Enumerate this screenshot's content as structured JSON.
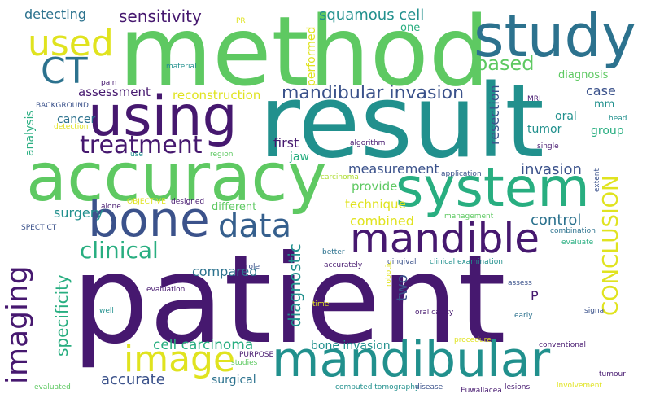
{
  "palette": {
    "dark_purple": "#46186f",
    "indigo": "#3b528b",
    "slate_blue": "#355f8d",
    "blue_teal": "#2c728e",
    "teal": "#21908d",
    "sea_green": "#28ae80",
    "green": "#5ec962",
    "lime": "#addc30",
    "yellow": "#e0e31f"
  },
  "words": [
    {
      "text": "patient",
      "color": "dark_purple"
    },
    {
      "text": "method",
      "color": "green"
    },
    {
      "text": "result",
      "color": "teal"
    },
    {
      "text": "accuracy",
      "color": "green"
    },
    {
      "text": "study",
      "color": "blue_teal"
    },
    {
      "text": "using",
      "color": "dark_purple"
    },
    {
      "text": "system",
      "color": "sea_green"
    },
    {
      "text": "bone",
      "color": "indigo"
    },
    {
      "text": "mandible",
      "color": "dark_purple"
    },
    {
      "text": "mandibular",
      "color": "teal"
    },
    {
      "text": "image",
      "color": "yellow"
    },
    {
      "text": "data",
      "color": "slate_blue"
    },
    {
      "text": "used",
      "color": "yellow"
    },
    {
      "text": "CT",
      "color": "blue_teal"
    },
    {
      "text": "treatment",
      "color": "dark_purple"
    },
    {
      "text": "imaging",
      "color": "dark_purple"
    },
    {
      "text": "clinical",
      "color": "sea_green"
    },
    {
      "text": "CONCLUSION",
      "color": "yellow"
    },
    {
      "text": "based",
      "color": "green"
    },
    {
      "text": "mandibular invasion",
      "color": "indigo"
    },
    {
      "text": "squamous cell",
      "color": "teal"
    },
    {
      "text": "sensitivity",
      "color": "dark_purple"
    },
    {
      "text": "detecting",
      "color": "blue_teal"
    },
    {
      "text": "specificity",
      "color": "sea_green"
    },
    {
      "text": "diagnostic",
      "color": "teal"
    },
    {
      "text": "accurate",
      "color": "indigo"
    },
    {
      "text": "cell carcinoma",
      "color": "sea_green"
    },
    {
      "text": "combined",
      "color": "yellow"
    },
    {
      "text": "control",
      "color": "blue_teal"
    },
    {
      "text": "invasion",
      "color": "indigo"
    },
    {
      "text": "measurement",
      "color": "indigo"
    },
    {
      "text": "first",
      "color": "dark_purple"
    },
    {
      "text": "provide",
      "color": "green"
    },
    {
      "text": "technique",
      "color": "yellow"
    },
    {
      "text": "compared",
      "color": "blue_teal"
    },
    {
      "text": "surgery",
      "color": "teal"
    },
    {
      "text": "reconstruction",
      "color": "yellow"
    },
    {
      "text": "assessment",
      "color": "dark_purple"
    },
    {
      "text": "two",
      "color": "indigo"
    },
    {
      "text": "bone invasion",
      "color": "teal"
    },
    {
      "text": "surgical",
      "color": "blue_teal"
    },
    {
      "text": "performed",
      "color": "yellow"
    },
    {
      "text": "resection",
      "color": "indigo"
    },
    {
      "text": "case",
      "color": "indigo"
    },
    {
      "text": "oral",
      "color": "teal"
    },
    {
      "text": "tumor",
      "color": "teal"
    },
    {
      "text": "group",
      "color": "sea_green"
    },
    {
      "text": "cancer",
      "color": "blue_teal"
    },
    {
      "text": "analysis",
      "color": "sea_green"
    },
    {
      "text": "diagnosis",
      "color": "green"
    },
    {
      "text": "one",
      "color": "sea_green"
    },
    {
      "text": "mm",
      "color": "teal"
    },
    {
      "text": "jaw",
      "color": "sea_green"
    },
    {
      "text": "different",
      "color": "green"
    },
    {
      "text": "P",
      "color": "dark_purple"
    },
    {
      "text": "PR",
      "color": "yellow"
    },
    {
      "text": "material",
      "color": "teal"
    },
    {
      "text": "pain",
      "color": "dark_purple"
    },
    {
      "text": "BACKGROUND",
      "color": "indigo"
    },
    {
      "text": "detection",
      "color": "yellow"
    },
    {
      "text": "use",
      "color": "teal"
    },
    {
      "text": "region",
      "color": "green"
    },
    {
      "text": "algorithm",
      "color": "dark_purple"
    },
    {
      "text": "carcinoma",
      "color": "lime"
    },
    {
      "text": "application",
      "color": "indigo"
    },
    {
      "text": "designed",
      "color": "dark_purple"
    },
    {
      "text": "OBJECTIVE",
      "color": "yellow"
    },
    {
      "text": "alone",
      "color": "dark_purple"
    },
    {
      "text": "MRI",
      "color": "dark_purple"
    },
    {
      "text": "head",
      "color": "teal"
    },
    {
      "text": "single",
      "color": "dark_purple"
    },
    {
      "text": "extent",
      "color": "indigo"
    },
    {
      "text": "management",
      "color": "green"
    },
    {
      "text": "combination",
      "color": "blue_teal"
    },
    {
      "text": "evaluate",
      "color": "sea_green"
    },
    {
      "text": "SPECT CT",
      "color": "indigo"
    },
    {
      "text": "role",
      "color": "indigo"
    },
    {
      "text": "better",
      "color": "blue_teal"
    },
    {
      "text": "accurately",
      "color": "dark_purple"
    },
    {
      "text": "gingival",
      "color": "indigo"
    },
    {
      "text": "clinical examination",
      "color": "teal"
    },
    {
      "text": "robotic",
      "color": "yellow"
    },
    {
      "text": "assess",
      "color": "indigo"
    },
    {
      "text": "evaluation",
      "color": "dark_purple"
    },
    {
      "text": "time",
      "color": "yellow"
    },
    {
      "text": "signal",
      "color": "indigo"
    },
    {
      "text": "early",
      "color": "blue_teal"
    },
    {
      "text": "well",
      "color": "teal"
    },
    {
      "text": "oral cavity",
      "color": "dark_purple"
    },
    {
      "text": "procedure",
      "color": "yellow"
    },
    {
      "text": "conventional",
      "color": "dark_purple"
    },
    {
      "text": "PURPOSE",
      "color": "dark_purple"
    },
    {
      "text": "studies",
      "color": "green"
    },
    {
      "text": "tumour",
      "color": "dark_purple"
    },
    {
      "text": "involvement",
      "color": "yellow"
    },
    {
      "text": "evaluated",
      "color": "green"
    },
    {
      "text": "computed tomography",
      "color": "teal"
    },
    {
      "text": "disease",
      "color": "indigo"
    },
    {
      "text": "Euwallacea",
      "color": "dark_purple"
    },
    {
      "text": "lesions",
      "color": "dark_purple"
    }
  ]
}
